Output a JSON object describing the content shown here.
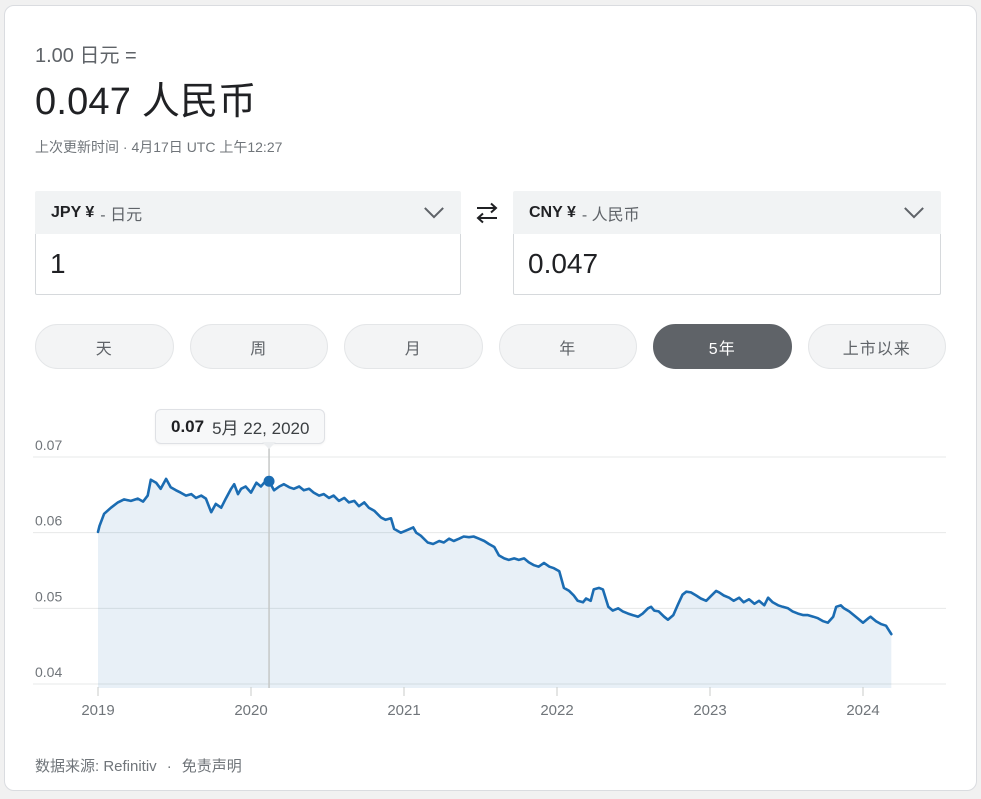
{
  "header": {
    "unit_line": "1.00 日元 =",
    "rate_line": "0.047 人民币",
    "updated": "上次更新时间 · 4月17日 UTC 上午12:27"
  },
  "converter": {
    "from": {
      "code": "JPY ¥",
      "name": "- 日元",
      "amount": "1"
    },
    "to": {
      "code": "CNY ¥",
      "name": "- 人民币",
      "amount": "0.047"
    },
    "icons": {
      "swap": "swap-horizontal-icon",
      "dropdown": "chevron-down-icon"
    }
  },
  "range_buttons": [
    {
      "label": "天",
      "selected": false
    },
    {
      "label": "周",
      "selected": false
    },
    {
      "label": "月",
      "selected": false
    },
    {
      "label": "年",
      "selected": false
    },
    {
      "label": "5年",
      "selected": true
    },
    {
      "label": "上市以来",
      "selected": false
    }
  ],
  "tooltip": {
    "value": "0.07",
    "date": "5月 22, 2020"
  },
  "chart_data": {
    "type": "area",
    "title": "",
    "xlabel": "",
    "ylabel": "",
    "grid": "horizontal",
    "legend": "none",
    "xlim": [
      2018.57,
      2024.56
    ],
    "ylim": [
      0.0395,
      0.0712
    ],
    "x_ticks": [
      {
        "label": "2019",
        "year": 2019
      },
      {
        "label": "2020",
        "year": 2020
      },
      {
        "label": "2021",
        "year": 2021
      },
      {
        "label": "2022",
        "year": 2022
      },
      {
        "label": "2023",
        "year": 2023
      },
      {
        "label": "2024",
        "year": 2024
      }
    ],
    "y_ticks": [
      {
        "label": "0.07",
        "value": 0.07
      },
      {
        "label": "0.06",
        "value": 0.06
      },
      {
        "label": "0.05",
        "value": 0.05
      },
      {
        "label": "0.04",
        "value": 0.04
      }
    ],
    "marker": {
      "x": 2020.118,
      "value": 0.0668,
      "display_value": "0.07",
      "display_date": "5月 22, 2020"
    },
    "line_color": "#1b6cb2",
    "fill_color": "rgba(27,108,178,0.10)",
    "points": [
      [
        2019.0,
        0.0601
      ],
      [
        2019.01,
        0.0609
      ],
      [
        2019.04,
        0.0625
      ],
      [
        2019.085,
        0.0633
      ],
      [
        2019.13,
        0.064
      ],
      [
        2019.17,
        0.0644
      ],
      [
        2019.215,
        0.0642
      ],
      [
        2019.26,
        0.0645
      ],
      [
        2019.295,
        0.0641
      ],
      [
        2019.325,
        0.0649
      ],
      [
        2019.345,
        0.067
      ],
      [
        2019.38,
        0.0666
      ],
      [
        2019.41,
        0.0658
      ],
      [
        2019.445,
        0.0671
      ],
      [
        2019.475,
        0.066
      ],
      [
        2019.51,
        0.0656
      ],
      [
        2019.54,
        0.0653
      ],
      [
        2019.575,
        0.0649
      ],
      [
        2019.61,
        0.0651
      ],
      [
        2019.64,
        0.0646
      ],
      [
        2019.675,
        0.0649
      ],
      [
        2019.705,
        0.0645
      ],
      [
        2019.74,
        0.0627
      ],
      [
        2019.77,
        0.0638
      ],
      [
        2019.805,
        0.0633
      ],
      [
        2019.835,
        0.0645
      ],
      [
        2019.87,
        0.0658
      ],
      [
        2019.89,
        0.0664
      ],
      [
        2019.915,
        0.0651
      ],
      [
        2019.935,
        0.0658
      ],
      [
        2019.965,
        0.0661
      ],
      [
        2020.0,
        0.0653
      ],
      [
        2020.035,
        0.0666
      ],
      [
        2020.065,
        0.0661
      ],
      [
        2020.095,
        0.0668
      ],
      [
        2020.118,
        0.0668
      ],
      [
        2020.15,
        0.0656
      ],
      [
        2020.185,
        0.0661
      ],
      [
        2020.215,
        0.0664
      ],
      [
        2020.25,
        0.066
      ],
      [
        2020.28,
        0.0658
      ],
      [
        2020.315,
        0.0661
      ],
      [
        2020.345,
        0.0656
      ],
      [
        2020.38,
        0.0658
      ],
      [
        2020.41,
        0.0653
      ],
      [
        2020.445,
        0.0649
      ],
      [
        2020.475,
        0.0651
      ],
      [
        2020.51,
        0.0646
      ],
      [
        2020.54,
        0.0649
      ],
      [
        2020.575,
        0.0642
      ],
      [
        2020.61,
        0.0646
      ],
      [
        2020.64,
        0.064
      ],
      [
        2020.675,
        0.0642
      ],
      [
        2020.705,
        0.0635
      ],
      [
        2020.74,
        0.064
      ],
      [
        2020.77,
        0.0633
      ],
      [
        2020.805,
        0.0629
      ],
      [
        2020.835,
        0.0623
      ],
      [
        2020.85,
        0.062
      ],
      [
        2020.88,
        0.0617
      ],
      [
        2020.915,
        0.0619
      ],
      [
        2020.935,
        0.0605
      ],
      [
        2020.98,
        0.06
      ],
      [
        2021.015,
        0.0603
      ],
      [
        2021.06,
        0.0607
      ],
      [
        2021.08,
        0.06
      ],
      [
        2021.11,
        0.0596
      ],
      [
        2021.155,
        0.0587
      ],
      [
        2021.19,
        0.0585
      ],
      [
        2021.23,
        0.0589
      ],
      [
        2021.26,
        0.0587
      ],
      [
        2021.295,
        0.0592
      ],
      [
        2021.325,
        0.0589
      ],
      [
        2021.36,
        0.0592
      ],
      [
        2021.39,
        0.0595
      ],
      [
        2021.425,
        0.0594
      ],
      [
        2021.455,
        0.0595
      ],
      [
        2021.49,
        0.0592
      ],
      [
        2021.525,
        0.0589
      ],
      [
        2021.555,
        0.0585
      ],
      [
        2021.59,
        0.0581
      ],
      [
        2021.62,
        0.057
      ],
      [
        2021.655,
        0.0566
      ],
      [
        2021.685,
        0.0564
      ],
      [
        2021.72,
        0.0566
      ],
      [
        2021.75,
        0.0564
      ],
      [
        2021.785,
        0.0566
      ],
      [
        2021.815,
        0.0561
      ],
      [
        2021.85,
        0.0557
      ],
      [
        2021.88,
        0.0555
      ],
      [
        2021.915,
        0.056
      ],
      [
        2021.95,
        0.0555
      ],
      [
        2021.98,
        0.0553
      ],
      [
        2022.015,
        0.0549
      ],
      [
        2022.045,
        0.0527
      ],
      [
        2022.08,
        0.0523
      ],
      [
        2022.11,
        0.0517
      ],
      [
        2022.135,
        0.051
      ],
      [
        2022.17,
        0.0508
      ],
      [
        2022.19,
        0.0513
      ],
      [
        2022.22,
        0.051
      ],
      [
        2022.24,
        0.0525
      ],
      [
        2022.275,
        0.0527
      ],
      [
        2022.3,
        0.0525
      ],
      [
        2022.335,
        0.0502
      ],
      [
        2022.365,
        0.0497
      ],
      [
        2022.4,
        0.05
      ],
      [
        2022.43,
        0.0496
      ],
      [
        2022.465,
        0.0493
      ],
      [
        2022.495,
        0.0491
      ],
      [
        2022.53,
        0.0489
      ],
      [
        2022.56,
        0.0493
      ],
      [
        2022.595,
        0.05
      ],
      [
        2022.615,
        0.0502
      ],
      [
        2022.635,
        0.0497
      ],
      [
        2022.665,
        0.0496
      ],
      [
        2022.7,
        0.0489
      ],
      [
        2022.725,
        0.0485
      ],
      [
        2022.76,
        0.0491
      ],
      [
        2022.79,
        0.0505
      ],
      [
        2022.82,
        0.0518
      ],
      [
        2022.845,
        0.0522
      ],
      [
        2022.875,
        0.0521
      ],
      [
        2022.91,
        0.0517
      ],
      [
        2022.94,
        0.0513
      ],
      [
        2022.975,
        0.051
      ],
      [
        2023.005,
        0.0516
      ],
      [
        2023.04,
        0.0523
      ],
      [
        2023.06,
        0.0521
      ],
      [
        2023.09,
        0.0517
      ],
      [
        2023.125,
        0.0514
      ],
      [
        2023.155,
        0.051
      ],
      [
        2023.19,
        0.0514
      ],
      [
        2023.22,
        0.0508
      ],
      [
        2023.255,
        0.0512
      ],
      [
        2023.29,
        0.0506
      ],
      [
        2023.32,
        0.051
      ],
      [
        2023.355,
        0.0504
      ],
      [
        2023.38,
        0.0514
      ],
      [
        2023.41,
        0.0508
      ],
      [
        2023.445,
        0.0504
      ],
      [
        2023.475,
        0.0502
      ],
      [
        2023.51,
        0.05
      ],
      [
        2023.54,
        0.0496
      ],
      [
        2023.575,
        0.0493
      ],
      [
        2023.61,
        0.0491
      ],
      [
        2023.64,
        0.0491
      ],
      [
        2023.675,
        0.0489
      ],
      [
        2023.705,
        0.0487
      ],
      [
        2023.74,
        0.0483
      ],
      [
        2023.77,
        0.0481
      ],
      [
        2023.805,
        0.0489
      ],
      [
        2023.825,
        0.0502
      ],
      [
        2023.855,
        0.0504
      ],
      [
        2023.875,
        0.05
      ],
      [
        2023.91,
        0.0496
      ],
      [
        2023.94,
        0.0491
      ],
      [
        2023.965,
        0.0487
      ],
      [
        2024.0,
        0.0481
      ],
      [
        2024.035,
        0.0487
      ],
      [
        2024.05,
        0.0489
      ],
      [
        2024.085,
        0.0483
      ],
      [
        2024.12,
        0.0479
      ],
      [
        2024.15,
        0.0477
      ],
      [
        2024.185,
        0.0466
      ]
    ]
  },
  "footer": {
    "source": "数据来源: Refinitiv",
    "separator": "·",
    "disclaimer": "免责声明"
  }
}
